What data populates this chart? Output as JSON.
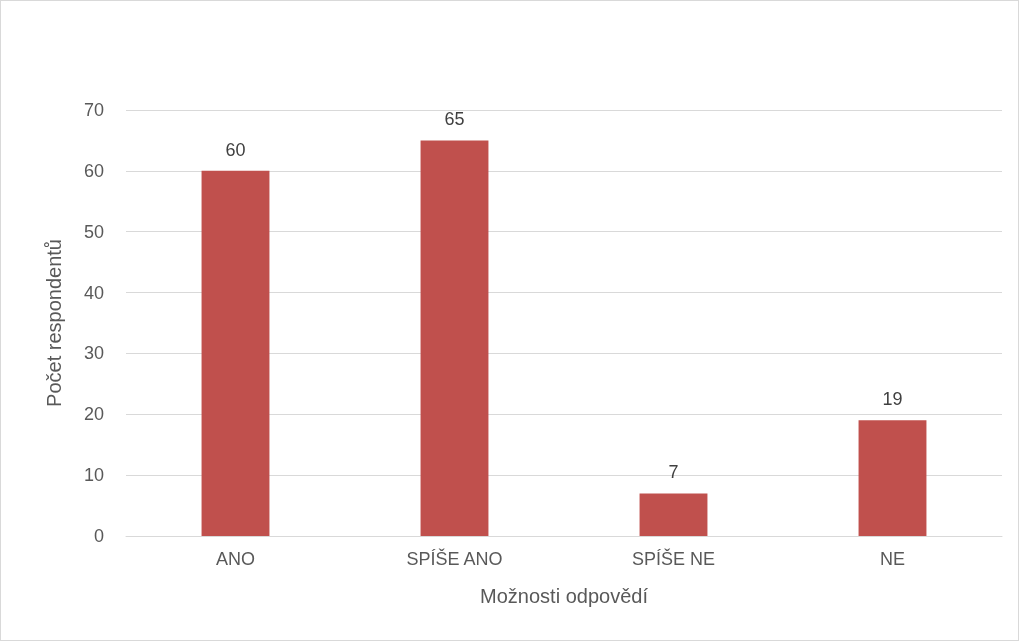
{
  "chart_data": {
    "type": "bar",
    "categories": [
      "ANO",
      "SPÍŠE ANO",
      "SPÍŠE NE",
      "NE"
    ],
    "values": [
      60,
      65,
      7,
      19
    ],
    "color": "#c0504d",
    "xlabel": "Možnosti odpovědí",
    "ylabel": "Počet respondentů",
    "ylim": [
      0,
      70
    ],
    "yticks": [
      0,
      10,
      20,
      30,
      40,
      50,
      60,
      70
    ],
    "grid": "y",
    "data_labels": true
  }
}
